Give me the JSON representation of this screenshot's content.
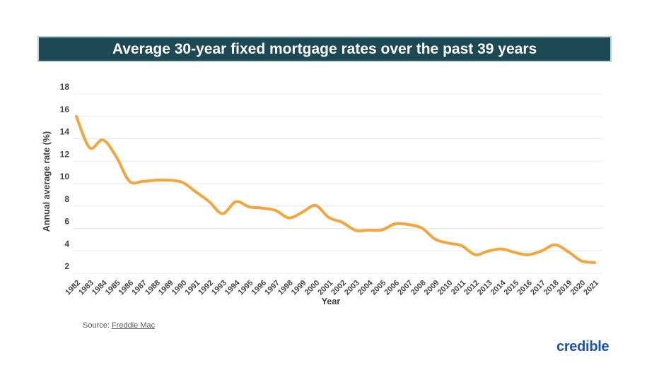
{
  "header": {},
  "chart_data": {
    "type": "line",
    "title": "Average 30-year fixed mortgage rates over the past 39 years",
    "xlabel": "Year",
    "ylabel": "Annual average rate (%)",
    "x": [
      1982,
      1983,
      1984,
      1985,
      1986,
      1987,
      1988,
      1989,
      1990,
      1991,
      1992,
      1993,
      1994,
      1995,
      1996,
      1997,
      1998,
      1999,
      2000,
      2001,
      2002,
      2003,
      2004,
      2005,
      2006,
      2007,
      2008,
      2009,
      2010,
      2011,
      2012,
      2013,
      2014,
      2015,
      2016,
      2017,
      2018,
      2019,
      2020,
      2021
    ],
    "values": [
      16.0,
      13.2,
      13.9,
      12.4,
      10.2,
      10.2,
      10.3,
      10.3,
      10.1,
      9.25,
      8.39,
      7.31,
      8.38,
      7.93,
      7.81,
      7.6,
      6.94,
      7.44,
      8.05,
      6.97,
      6.54,
      5.83,
      5.84,
      5.87,
      6.41,
      6.34,
      6.03,
      5.04,
      4.69,
      4.45,
      3.66,
      3.98,
      4.17,
      3.85,
      3.65,
      3.99,
      4.54,
      3.94,
      3.1,
      2.96
    ],
    "yticks": [
      2,
      4,
      6,
      8,
      10,
      12,
      14,
      16,
      18
    ],
    "ylim": [
      2,
      18
    ],
    "grid": true,
    "legend": null
  },
  "source": {
    "label": "Source:",
    "link_text": "Freddie Mac"
  },
  "brand": {
    "logo_text": "credible"
  },
  "colors": {
    "header_bg": "#1d4954",
    "header_border": "#bcd2d6",
    "title_text": "#ffffff",
    "line": "#f0a73e",
    "grid": "#e6e9ec",
    "axis_text": "#454545",
    "source_text": "#5a5a5a",
    "logo_blue": "#1d52aa",
    "logo_dot": "#4bbdee"
  }
}
